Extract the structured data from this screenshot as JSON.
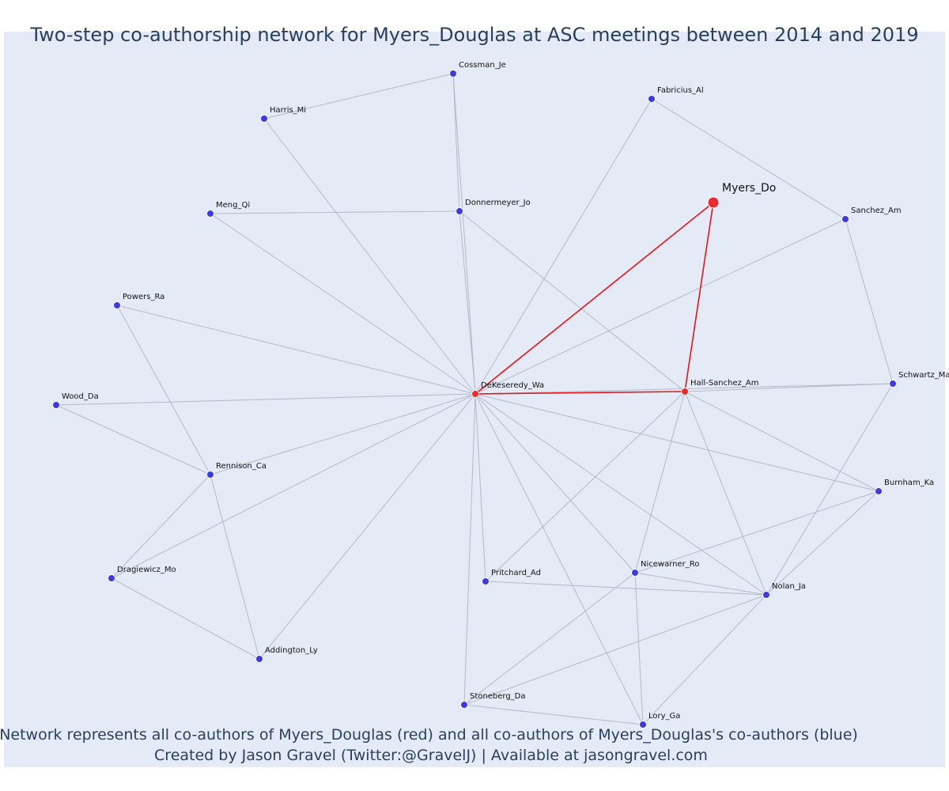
{
  "title": "Two-step co-authorship network for Myers_Douglas at ASC meetings between 2014 and 2019",
  "caption_line1": "Network represents all co-authors of Myers_Douglas (red) and all co-authors of Myers_Douglas's co-authors (blue)",
  "caption_line2": "Created by Jason Gravel (Twitter:@GravelJ) | Available at jasongravel.com",
  "colors": {
    "background": "#e5ebf6",
    "edge": "#b4b8c8",
    "focus_edge": "#e8141a",
    "coauthor_node": "#ee2a2a",
    "second_step_node": "#3b3ae6"
  },
  "nodes": [
    {
      "id": "Myers_Do",
      "group": "focus"
    },
    {
      "id": "DeKeseredy_Wa",
      "group": "coauthor"
    },
    {
      "id": "Hall-Sanchez_Am",
      "group": "coauthor"
    },
    {
      "id": "Cossman_Je",
      "group": "second"
    },
    {
      "id": "Fabricius_Al",
      "group": "second"
    },
    {
      "id": "Harris_Mi",
      "group": "second"
    },
    {
      "id": "Donnermeyer_Jo",
      "group": "second"
    },
    {
      "id": "Meng_Qi",
      "group": "second"
    },
    {
      "id": "Sanchez_Am",
      "group": "second"
    },
    {
      "id": "Powers_Ra",
      "group": "second"
    },
    {
      "id": "Schwartz_Ma",
      "group": "second"
    },
    {
      "id": "Wood_Da",
      "group": "second"
    },
    {
      "id": "Rennison_Ca",
      "group": "second"
    },
    {
      "id": "Burnham_Ka",
      "group": "second"
    },
    {
      "id": "Dragiewicz_Mo",
      "group": "second"
    },
    {
      "id": "Pritchard_Ad",
      "group": "second"
    },
    {
      "id": "Nicewarner_Ro",
      "group": "second"
    },
    {
      "id": "Nolan_Ja",
      "group": "second"
    },
    {
      "id": "Addington_Ly",
      "group": "second"
    },
    {
      "id": "Stoneberg_Da",
      "group": "second"
    },
    {
      "id": "Lory_Ga",
      "group": "second"
    }
  ],
  "edges": [
    [
      "Myers_Do",
      "DeKeseredy_Wa"
    ],
    [
      "Myers_Do",
      "Hall-Sanchez_Am"
    ],
    [
      "DeKeseredy_Wa",
      "Hall-Sanchez_Am"
    ],
    [
      "DeKeseredy_Wa",
      "Cossman_Je"
    ],
    [
      "DeKeseredy_Wa",
      "Fabricius_Al"
    ],
    [
      "DeKeseredy_Wa",
      "Harris_Mi"
    ],
    [
      "DeKeseredy_Wa",
      "Donnermeyer_Jo"
    ],
    [
      "DeKeseredy_Wa",
      "Meng_Qi"
    ],
    [
      "DeKeseredy_Wa",
      "Sanchez_Am"
    ],
    [
      "DeKeseredy_Wa",
      "Powers_Ra"
    ],
    [
      "DeKeseredy_Wa",
      "Schwartz_Ma"
    ],
    [
      "DeKeseredy_Wa",
      "Wood_Da"
    ],
    [
      "DeKeseredy_Wa",
      "Rennison_Ca"
    ],
    [
      "DeKeseredy_Wa",
      "Burnham_Ka"
    ],
    [
      "DeKeseredy_Wa",
      "Dragiewicz_Mo"
    ],
    [
      "DeKeseredy_Wa",
      "Pritchard_Ad"
    ],
    [
      "DeKeseredy_Wa",
      "Nicewarner_Ro"
    ],
    [
      "DeKeseredy_Wa",
      "Nolan_Ja"
    ],
    [
      "DeKeseredy_Wa",
      "Addington_Ly"
    ],
    [
      "DeKeseredy_Wa",
      "Stoneberg_Da"
    ],
    [
      "DeKeseredy_Wa",
      "Lory_Ga"
    ],
    [
      "Hall-Sanchez_Am",
      "Donnermeyer_Jo"
    ],
    [
      "Hall-Sanchez_Am",
      "Schwartz_Ma"
    ],
    [
      "Hall-Sanchez_Am",
      "Burnham_Ka"
    ],
    [
      "Hall-Sanchez_Am",
      "Pritchard_Ad"
    ],
    [
      "Hall-Sanchez_Am",
      "Nicewarner_Ro"
    ],
    [
      "Hall-Sanchez_Am",
      "Nolan_Ja"
    ],
    [
      "Cossman_Je",
      "Harris_Mi"
    ],
    [
      "Cossman_Je",
      "Donnermeyer_Jo"
    ],
    [
      "Fabricius_Al",
      "Sanchez_Am"
    ],
    [
      "Meng_Qi",
      "Donnermeyer_Jo"
    ],
    [
      "Sanchez_Am",
      "Schwartz_Ma"
    ],
    [
      "Schwartz_Ma",
      "Nolan_Ja"
    ],
    [
      "Powers_Ra",
      "Rennison_Ca"
    ],
    [
      "Wood_Da",
      "Rennison_Ca"
    ],
    [
      "Rennison_Ca",
      "Dragiewicz_Mo"
    ],
    [
      "Rennison_Ca",
      "Addington_Ly"
    ],
    [
      "Dragiewicz_Mo",
      "Addington_Ly"
    ],
    [
      "Burnham_Ka",
      "Nicewarner_Ro"
    ],
    [
      "Burnham_Ka",
      "Nolan_Ja"
    ],
    [
      "Pritchard_Ad",
      "Nolan_Ja"
    ],
    [
      "Nicewarner_Ro",
      "Nolan_Ja"
    ],
    [
      "Nicewarner_Ro",
      "Stoneberg_Da"
    ],
    [
      "Nicewarner_Ro",
      "Lory_Ga"
    ],
    [
      "Nolan_Ja",
      "Stoneberg_Da"
    ],
    [
      "Nolan_Ja",
      "Lory_Ga"
    ],
    [
      "Stoneberg_Da",
      "Lory_Ga"
    ]
  ]
}
